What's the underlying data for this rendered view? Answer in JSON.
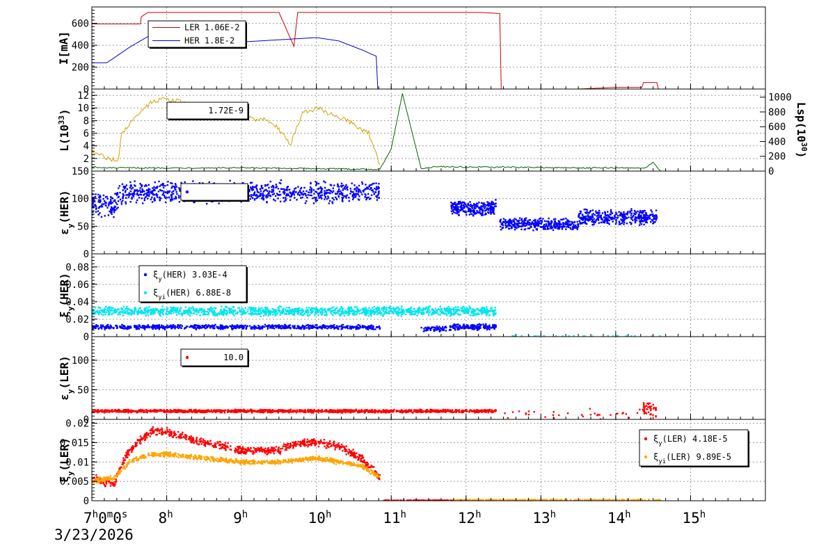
{
  "date_label": "3/23/2026",
  "chart_data": [
    {
      "type": "line",
      "ylabel": "I[mA]",
      "ylim": [
        0,
        750
      ],
      "yticks": [
        0,
        200,
        400,
        600
      ],
      "grid": true,
      "legend": {
        "placement": "top-left",
        "entries": [
          {
            "name": "LER",
            "value": "1.06E-2",
            "color": "#cc0000"
          },
          {
            "name": "HER",
            "value": "1.8E-2",
            "color": "#0000cc"
          }
        ]
      },
      "series": [
        {
          "name": "LER",
          "color": "#cc0000",
          "x": [
            7.0,
            7.65,
            7.66,
            7.75,
            9.5,
            9.7,
            9.75,
            12.1,
            12.2,
            12.45,
            12.47,
            13.5,
            14.0,
            14.35,
            14.37,
            14.55,
            14.57,
            15.95
          ],
          "y": [
            595,
            595,
            660,
            700,
            700,
            390,
            700,
            700,
            700,
            690,
            0,
            0,
            15,
            15,
            60,
            60,
            0,
            0
          ]
        },
        {
          "name": "HER",
          "color": "#0000cc",
          "x": [
            7.0,
            7.2,
            7.5,
            7.8,
            8.0,
            8.5,
            9.0,
            9.5,
            10.0,
            10.3,
            10.6,
            10.8,
            10.82,
            15.95
          ],
          "y": [
            240,
            240,
            380,
            500,
            490,
            440,
            430,
            450,
            470,
            440,
            360,
            300,
            0,
            0
          ]
        }
      ]
    },
    {
      "type": "line",
      "ylabel": "L(10^33)",
      "ylabel_base": "L(10",
      "ylabel_exp": "33",
      "ylabel_tail": ")",
      "ylim": [
        0,
        13
      ],
      "yticks": [
        2,
        4,
        6,
        8,
        10,
        12
      ],
      "y2label": "Lsp(10^30)",
      "y2label_base": "Lsp(10",
      "y2label_exp": "30",
      "y2label_tail": ")",
      "y2lim": [
        0,
        1110
      ],
      "y2ticks": [
        0,
        200,
        400,
        600,
        800,
        1000
      ],
      "grid": true,
      "legend": {
        "placement": "top-left",
        "entries": [
          {
            "name": "",
            "value": "1.72E-9",
            "color": "#000000"
          }
        ]
      },
      "series": [
        {
          "name": "L",
          "color": "#d4a000",
          "axis": "left",
          "x": [
            7.0,
            7.35,
            7.4,
            7.6,
            7.8,
            8.0,
            8.3,
            8.6,
            9.0,
            9.4,
            9.6,
            9.65,
            9.8,
            10.0,
            10.4,
            10.7,
            10.85
          ],
          "y": [
            3,
            1.5,
            6,
            9,
            11,
            11.5,
            10.5,
            9,
            8.5,
            8,
            5,
            4,
            9,
            10,
            8,
            6,
            1
          ]
        },
        {
          "name": "Lsp",
          "color": "#006600",
          "axis": "right",
          "x": [
            7.0,
            7.1,
            7.3,
            9.0,
            10.85,
            11.0,
            11.1,
            11.15,
            11.4,
            11.6,
            12.0,
            12.5,
            13.5,
            14.4,
            14.5,
            14.6
          ],
          "y": [
            60,
            40,
            40,
            40,
            20,
            300,
            800,
            1050,
            30,
            60,
            50,
            50,
            40,
            40,
            120,
            0
          ]
        }
      ]
    },
    {
      "type": "scatter",
      "ylabel": "εy(HER)",
      "ylabel_base": "ε",
      "ylabel_sub": "y",
      "ylabel_tail": "(HER)",
      "ylim": [
        0,
        150
      ],
      "yticks": [
        0,
        50,
        100,
        150
      ],
      "grid": true,
      "legend": {
        "placement": "top-left",
        "entries": [
          {
            "name": "",
            "value": "",
            "color": "#0000ff"
          }
        ]
      },
      "segments": [
        {
          "color": "#0000ff",
          "x_start": 7.0,
          "x_end": 7.35,
          "y_base": 90,
          "y_spread": 25,
          "count": 110
        },
        {
          "color": "#0000ff",
          "x_start": 7.35,
          "x_end": 10.85,
          "y_base": 112,
          "y_spread": 22,
          "count": 900
        },
        {
          "color": "#0000ff",
          "x_start": 11.8,
          "x_end": 12.4,
          "y_base": 83,
          "y_spread": 15,
          "count": 250
        },
        {
          "color": "#0000ff",
          "x_start": 12.45,
          "x_end": 13.5,
          "y_base": 54,
          "y_spread": 12,
          "count": 350
        },
        {
          "color": "#0000ff",
          "x_start": 13.5,
          "x_end": 14.55,
          "y_base": 66,
          "y_spread": 16,
          "count": 380
        }
      ]
    },
    {
      "type": "scatter",
      "ylabel": "ξy(HER)",
      "ylabel_base": "ξ",
      "ylabel_sub": "y",
      "ylabel_tail": "(HER)",
      "ylim": [
        0,
        0.095
      ],
      "yticks": [
        0,
        0.02,
        0.04,
        0.06,
        0.08
      ],
      "ytick_labels": [
        "0",
        "0.02",
        "0.04",
        "0.06",
        "0.08"
      ],
      "grid": true,
      "legend": {
        "placement": "top-left",
        "entries": [
          {
            "name_base": "ξ",
            "name_sub": "y",
            "name_tail": "(HER)",
            "value": "3.03E-4",
            "color": "#0000ff"
          },
          {
            "name_base": "ξ",
            "name_sub": "yi",
            "name_tail": "(HER)",
            "value": "6.88E-8",
            "color": "#00e5ee"
          }
        ]
      },
      "segments": [
        {
          "color": "#00e5ee",
          "x_start": 7.0,
          "x_end": 12.4,
          "y_base": 0.029,
          "y_spread": 0.006,
          "count": 1400
        },
        {
          "color": "#0000ff",
          "x_start": 7.0,
          "x_end": 10.85,
          "y_base": 0.011,
          "y_spread": 0.003,
          "count": 700
        },
        {
          "color": "#0000ff",
          "x_start": 11.4,
          "x_end": 11.8,
          "y_base": 0.009,
          "y_spread": 0.004,
          "count": 60
        },
        {
          "color": "#0000ff",
          "x_start": 11.8,
          "x_end": 12.4,
          "y_base": 0.011,
          "y_spread": 0.004,
          "count": 150
        },
        {
          "color": "#00e5ee",
          "x_start": 12.5,
          "x_end": 14.6,
          "y_base": 0.0005,
          "y_spread": 0.0004,
          "count": 30
        }
      ]
    },
    {
      "type": "scatter",
      "ylabel": "εy(LER)",
      "ylabel_base": "ε",
      "ylabel_sub": "y",
      "ylabel_tail": "(LER)",
      "ylim": [
        0,
        140
      ],
      "yticks": [
        0,
        50,
        100
      ],
      "grid": true,
      "legend": {
        "placement": "top-left",
        "entries": [
          {
            "name": "",
            "value": "10.0",
            "color": "#ff0000"
          }
        ]
      },
      "segments": [
        {
          "color": "#ff0000",
          "x_start": 7.0,
          "x_end": 12.4,
          "y_base": 14,
          "y_spread": 3,
          "count": 1300
        },
        {
          "color": "#ff0000",
          "x_start": 12.5,
          "x_end": 14.55,
          "y_base": 8,
          "y_spread": 10,
          "count": 40
        },
        {
          "color": "#ff0000",
          "x_start": 14.35,
          "x_end": 14.55,
          "y_base": 18,
          "y_spread": 12,
          "count": 40
        }
      ]
    },
    {
      "type": "scatter",
      "ylabel": "ξy(LER)",
      "ylabel_base": "ξ",
      "ylabel_sub": "y",
      "ylabel_tail": "(LER)",
      "ylim": [
        0,
        0.021
      ],
      "yticks": [
        0,
        0.005,
        0.01,
        0.015,
        0.02
      ],
      "ytick_labels": [
        "0",
        "0.005",
        "0.01",
        "0.015",
        "0.02"
      ],
      "grid": true,
      "legend": {
        "placement": "top-right",
        "entries": [
          {
            "name_base": "ξ",
            "name_sub": "y",
            "name_tail": "(LER)",
            "value": "4.18E-5",
            "color": "#ff0000"
          },
          {
            "name_base": "ξ",
            "name_sub": "yi",
            "name_tail": "(LER)",
            "value": "9.89E-5",
            "color": "#ffa500"
          }
        ]
      },
      "curves": [
        {
          "color": "#ff0000",
          "x": [
            7.0,
            7.3,
            7.35,
            7.5,
            7.8,
            8.0,
            8.3,
            8.5,
            8.8,
            9.0,
            9.5,
            9.8,
            10.0,
            10.3,
            10.6,
            10.85
          ],
          "y": [
            0.006,
            0.004,
            0.007,
            0.013,
            0.018,
            0.018,
            0.016,
            0.015,
            0.014,
            0.013,
            0.013,
            0.015,
            0.015,
            0.014,
            0.011,
            0.006
          ],
          "spread": 0.0012,
          "count": 800
        },
        {
          "color": "#ffa500",
          "x": [
            7.0,
            7.3,
            7.5,
            7.8,
            8.0,
            8.5,
            9.0,
            9.5,
            10.0,
            10.3,
            10.6,
            10.85
          ],
          "y": [
            0.005,
            0.006,
            0.01,
            0.012,
            0.012,
            0.011,
            0.01,
            0.01,
            0.011,
            0.01,
            0.009,
            0.006
          ],
          "spread": 0.0007,
          "count": 800
        },
        {
          "color": "#ff0000",
          "x": [
            10.9,
            12.0
          ],
          "y": [
            0.0001,
            0.0001
          ],
          "spread": 0.0001,
          "count": 90
        },
        {
          "color": "#ffa500",
          "x": [
            11.8,
            14.6
          ],
          "y": [
            0.0002,
            0.0002
          ],
          "spread": 0.0001,
          "count": 200
        }
      ]
    }
  ],
  "x_axis": {
    "xlim": [
      7.0,
      16.0
    ],
    "ticks": [
      {
        "x": 7.0,
        "h": "7",
        "sup": "h",
        "tail": "0",
        "sup2": "m",
        "tail2": "0",
        "sup3": "s"
      },
      {
        "x": 8.0,
        "h": "8",
        "sup": "h"
      },
      {
        "x": 9.0,
        "h": "9",
        "sup": "h"
      },
      {
        "x": 10.0,
        "h": "10",
        "sup": "h"
      },
      {
        "x": 11.0,
        "h": "11",
        "sup": "h"
      },
      {
        "x": 12.0,
        "h": "12",
        "sup": "h"
      },
      {
        "x": 13.0,
        "h": "13",
        "sup": "h"
      },
      {
        "x": 14.0,
        "h": "14",
        "sup": "h"
      },
      {
        "x": 15.0,
        "h": "15",
        "sup": "h"
      }
    ]
  }
}
